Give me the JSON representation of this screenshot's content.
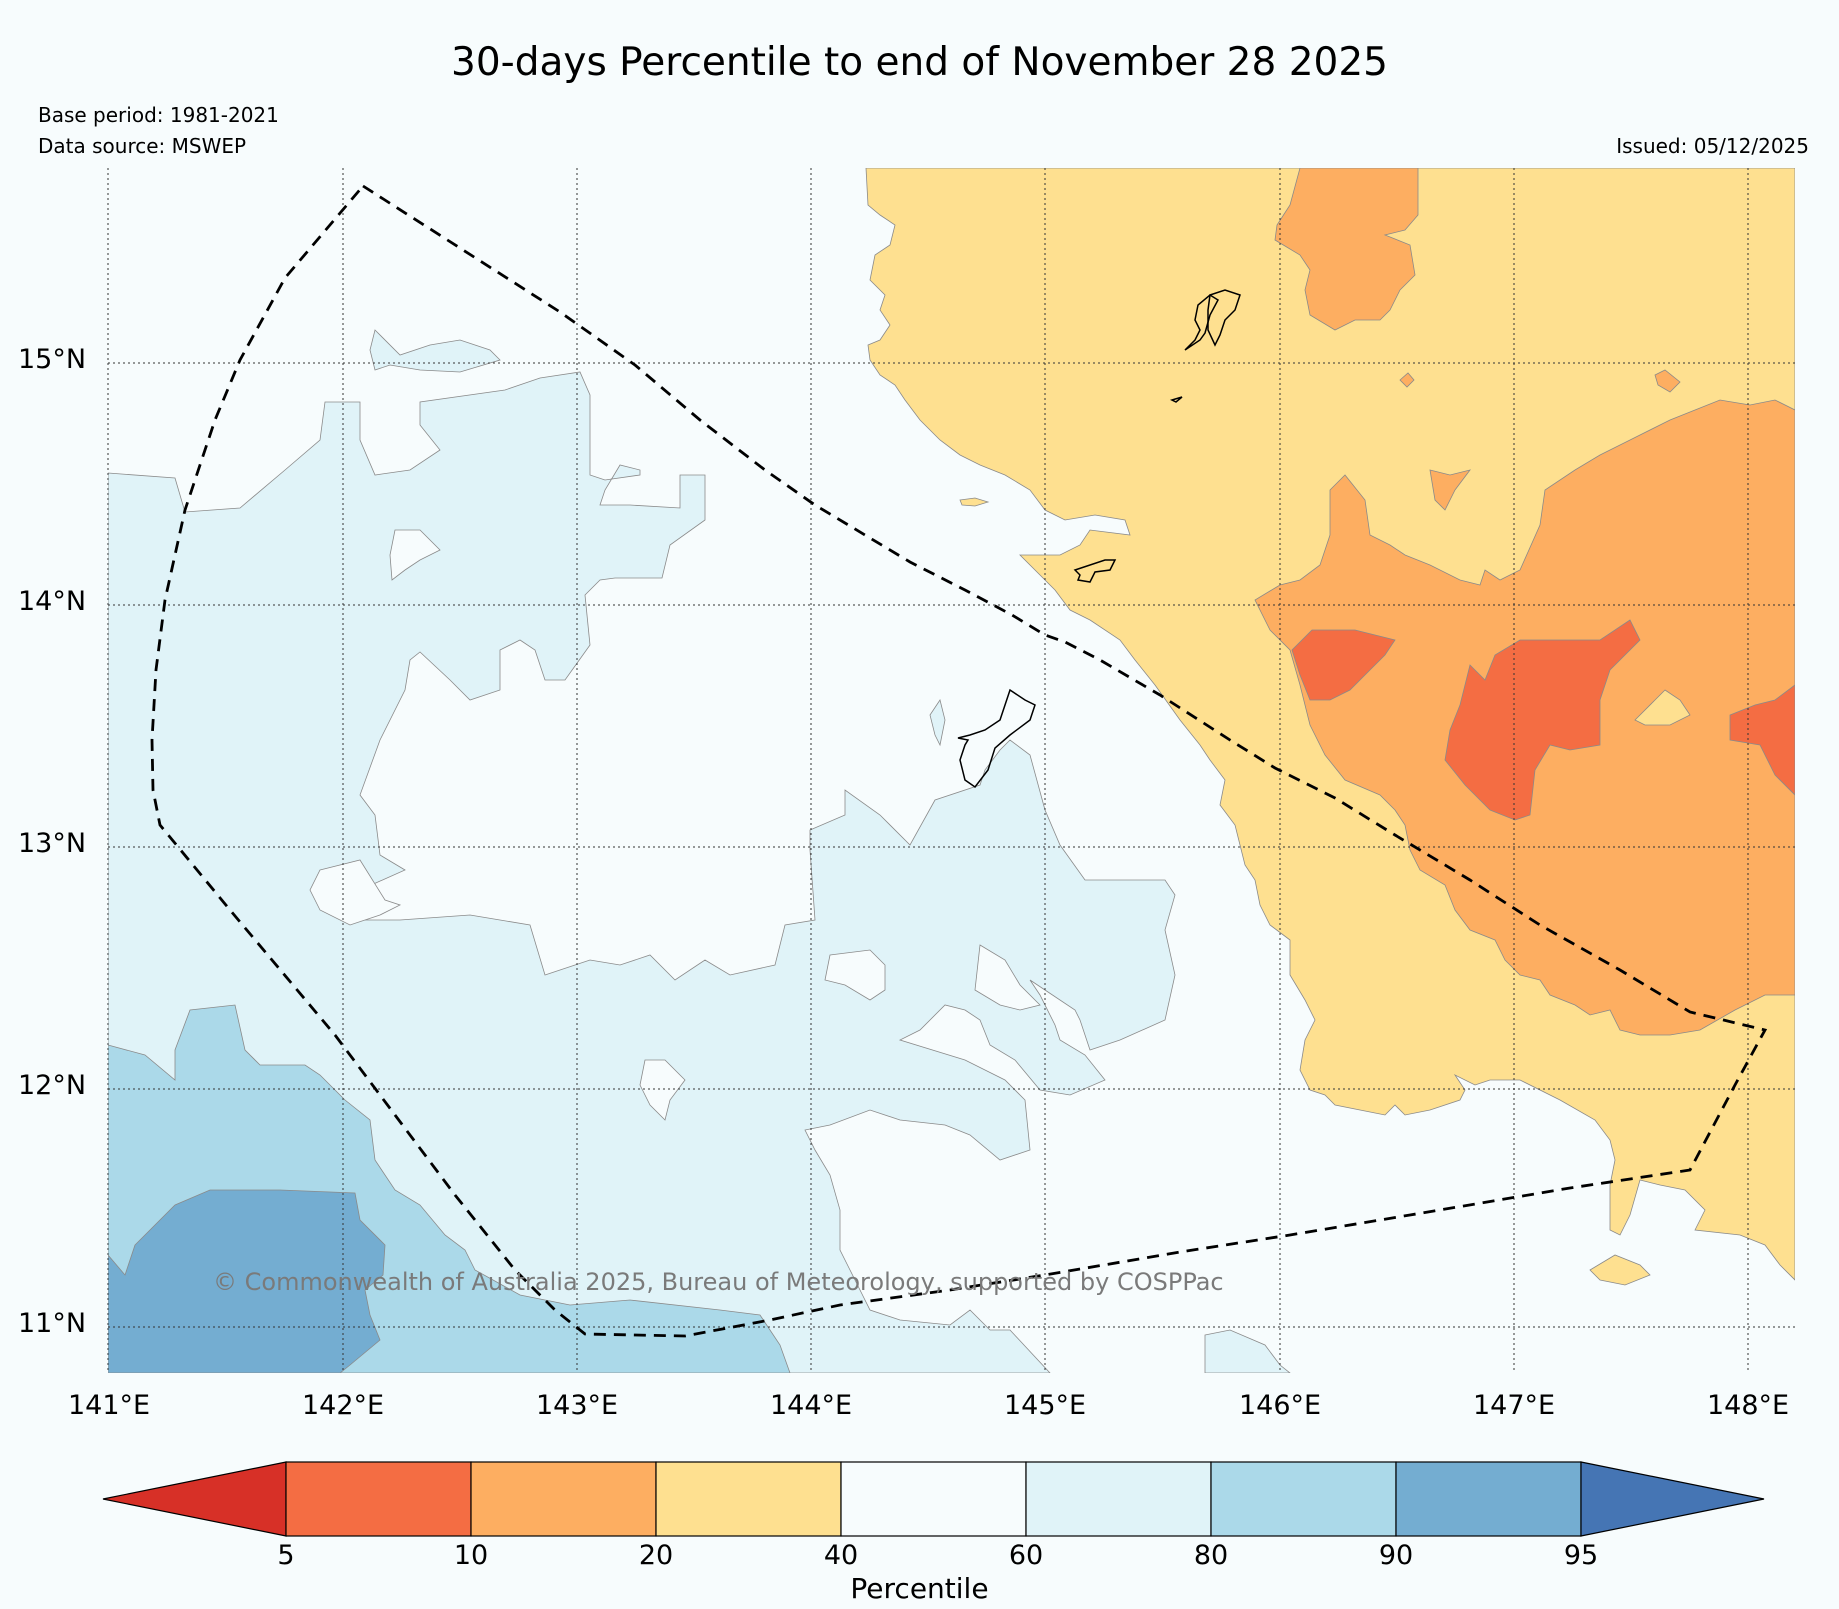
{
  "map": {
    "title": "30-days Percentile to end of November 28 2025",
    "base_period": "Base period: 1981-2021",
    "data_source": "Data source: MSWEP",
    "issued": "Issued: 05/12/2025",
    "copyright": "© Commonwealth of Australia 2025, Bureau of Meteorology, supported by COSPPac",
    "lon_labels": [
      "141°E",
      "142°E",
      "143°E",
      "144°E",
      "145°E",
      "146°E",
      "147°E",
      "148°E"
    ],
    "lat_labels": [
      "15°N",
      "14°N",
      "13°N",
      "12°N",
      "11°N"
    ]
  },
  "colorbar": {
    "title": "Percentile",
    "ticks": [
      "5",
      "10",
      "20",
      "40",
      "60",
      "80",
      "90",
      "95"
    ],
    "colors": {
      "below_5": "#d73027",
      "p5_10": "#f46d43",
      "p10_20": "#fdae61",
      "p20_40": "#fee090",
      "p40_60": "#f7fcfd",
      "p60_80": "#e0f3f8",
      "p80_90": "#abd9e9",
      "p90_95": "#74add1",
      "above_95": "#4575b4"
    }
  }
}
